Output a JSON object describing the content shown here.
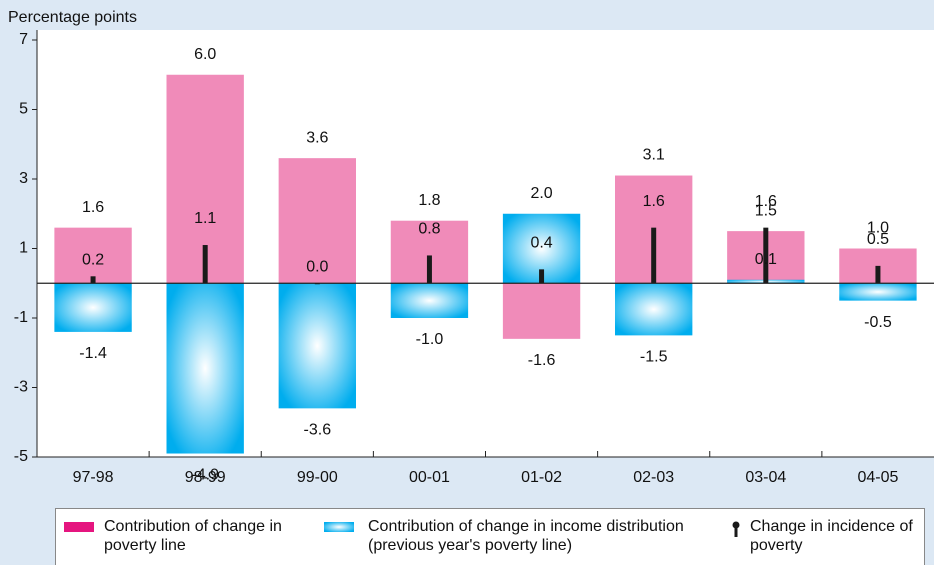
{
  "chart_data": {
    "type": "bar",
    "y_axis_label": "Percentage points",
    "categories": [
      "97-98",
      "98-99",
      "99-00",
      "00-01",
      "01-02",
      "02-03",
      "03-04",
      "04-05"
    ],
    "series": [
      {
        "name": "Contribution of change in poverty line",
        "type": "bar",
        "color": "#f08bb9",
        "legend_color": "#e5157f",
        "values": [
          1.6,
          6.0,
          3.6,
          1.8,
          -1.6,
          3.1,
          1.5,
          1.0
        ],
        "value_labels": [
          "1.6",
          "6.0",
          "3.6",
          "1.8",
          "-1.6",
          "3.1",
          "1.5",
          "1.0"
        ]
      },
      {
        "name": "Contribution of change in income distribution (previous year's poverty line)",
        "type": "gradient-bar",
        "color": "#00adee",
        "values": [
          -1.4,
          -4.9,
          -3.6,
          -1.0,
          2.0,
          -1.5,
          0.1,
          -0.5
        ],
        "value_labels": [
          "-1.4",
          "-4.9",
          "-3.6",
          "-1.0",
          "2.0",
          "-1.5",
          "0.1",
          "-0.5"
        ]
      },
      {
        "name": "Change in incidence of poverty",
        "type": "stick",
        "color": "#1a1a1a",
        "values": [
          0.2,
          1.1,
          0.0,
          0.8,
          0.4,
          1.6,
          1.6,
          0.5
        ],
        "value_labels": [
          "0.2",
          "1.1",
          "0.0",
          "0.8",
          "0.4",
          "1.6",
          "1.6",
          "0.5"
        ]
      }
    ],
    "ylim": [
      -5,
      7
    ],
    "yticks": [
      -5,
      -3,
      -1,
      1,
      3,
      5,
      7
    ]
  }
}
